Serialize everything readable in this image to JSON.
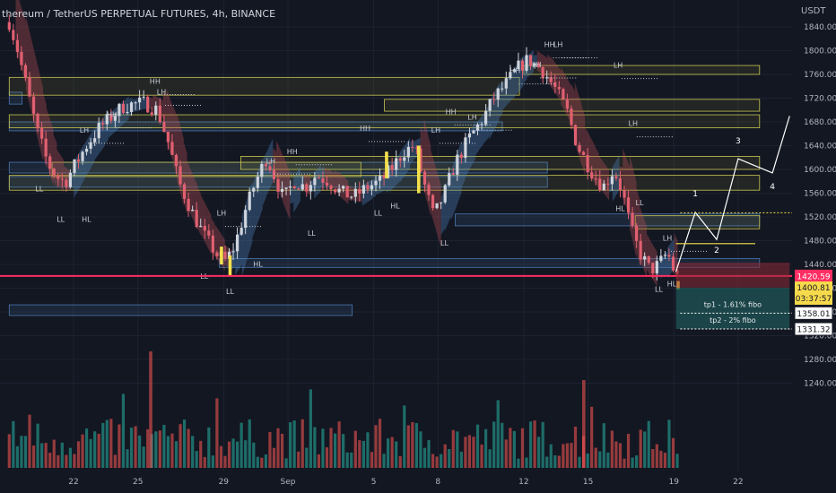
{
  "header": {
    "title": "thereum / TetherUS PERPETUAL FUTURES, 4h, BINANCE",
    "currency": "USDT"
  },
  "colors": {
    "background": "#131722",
    "up_candle": "#cfd4dc",
    "down_candle": "#e06070",
    "ribbon_up": "#4f86c4",
    "ribbon_down": "#c0505a",
    "supply_zone": "#c8c850",
    "demand_zone": "#4a78b0",
    "current_price_line": "#ff2e63",
    "current_price_label": "#f7d94c",
    "projection": "#ffffff",
    "volume_up": "#26a69a",
    "volume_down": "#ef5350"
  },
  "chart_data": {
    "type": "candlestick",
    "symbol": "ETHUSDT",
    "timeframe": "4h",
    "y_axis_ticks": [
      "1840.00",
      "1800.00",
      "1760.00",
      "1720.00",
      "1680.00",
      "1640.00",
      "1600.00",
      "1560.00",
      "1520.00",
      "1480.00",
      "1440.00",
      "1400.00",
      "1360.00",
      "1320.00",
      "1280.00",
      "1240.00"
    ],
    "x_axis_labels": [
      {
        "label": "22",
        "day": 22
      },
      {
        "label": "25",
        "day": 25
      },
      {
        "label": "29",
        "day": 29
      },
      {
        "label": "Sep",
        "day": 32
      },
      {
        "label": "5",
        "day": 36
      },
      {
        "label": "8",
        "day": 39
      },
      {
        "label": "12",
        "day": 43
      },
      {
        "label": "15",
        "day": 46
      },
      {
        "label": "19",
        "day": 50
      },
      {
        "label": "22",
        "day": 53
      }
    ],
    "ohlc_path": [
      {
        "day": 19.0,
        "price": 1848
      },
      {
        "day": 19.4,
        "price": 1800
      },
      {
        "day": 19.8,
        "price": 1740
      },
      {
        "day": 20.3,
        "price": 1665
      },
      {
        "day": 20.8,
        "price": 1610
      },
      {
        "day": 21.2,
        "price": 1588
      },
      {
        "day": 21.6,
        "price": 1578
      },
      {
        "day": 22.1,
        "price": 1610
      },
      {
        "day": 22.6,
        "price": 1640
      },
      {
        "day": 23.2,
        "price": 1670
      },
      {
        "day": 23.8,
        "price": 1690
      },
      {
        "day": 24.3,
        "price": 1706
      },
      {
        "day": 24.8,
        "price": 1710
      },
      {
        "day": 25.3,
        "price": 1712
      },
      {
        "day": 25.9,
        "price": 1700
      },
      {
        "day": 26.4,
        "price": 1648
      },
      {
        "day": 26.9,
        "price": 1580
      },
      {
        "day": 27.5,
        "price": 1530
      },
      {
        "day": 28.1,
        "price": 1488
      },
      {
        "day": 28.7,
        "price": 1456
      },
      {
        "day": 29.1,
        "price": 1446
      },
      {
        "day": 29.5,
        "price": 1470
      },
      {
        "day": 30.0,
        "price": 1530
      },
      {
        "day": 30.5,
        "price": 1580
      },
      {
        "day": 31.0,
        "price": 1620
      },
      {
        "day": 31.4,
        "price": 1586
      },
      {
        "day": 31.8,
        "price": 1550
      },
      {
        "day": 32.3,
        "price": 1580
      },
      {
        "day": 32.8,
        "price": 1570
      },
      {
        "day": 33.3,
        "price": 1590
      },
      {
        "day": 33.9,
        "price": 1580
      },
      {
        "day": 34.5,
        "price": 1560
      },
      {
        "day": 35.1,
        "price": 1555
      },
      {
        "day": 35.7,
        "price": 1570
      },
      {
        "day": 36.3,
        "price": 1580
      },
      {
        "day": 36.8,
        "price": 1600
      },
      {
        "day": 37.4,
        "price": 1630
      },
      {
        "day": 37.9,
        "price": 1640
      },
      {
        "day": 38.3,
        "price": 1582
      },
      {
        "day": 38.8,
        "price": 1520
      },
      {
        "day": 39.3,
        "price": 1560
      },
      {
        "day": 39.8,
        "price": 1610
      },
      {
        "day": 40.4,
        "price": 1650
      },
      {
        "day": 41.0,
        "price": 1680
      },
      {
        "day": 41.6,
        "price": 1720
      },
      {
        "day": 42.2,
        "price": 1745
      },
      {
        "day": 42.7,
        "price": 1770
      },
      {
        "day": 43.2,
        "price": 1785
      },
      {
        "day": 43.8,
        "price": 1770
      },
      {
        "day": 44.4,
        "price": 1740
      },
      {
        "day": 45.0,
        "price": 1700
      },
      {
        "day": 45.5,
        "price": 1640
      },
      {
        "day": 46.1,
        "price": 1600
      },
      {
        "day": 46.7,
        "price": 1570
      },
      {
        "day": 47.2,
        "price": 1600
      },
      {
        "day": 47.6,
        "price": 1562
      },
      {
        "day": 48.0,
        "price": 1500
      },
      {
        "day": 48.4,
        "price": 1460
      },
      {
        "day": 48.9,
        "price": 1430
      },
      {
        "day": 49.3,
        "price": 1440
      },
      {
        "day": 49.7,
        "price": 1460
      },
      {
        "day": 50.0,
        "price": 1430
      },
      {
        "day": 50.3,
        "price": 1410
      }
    ],
    "supply_zones": [
      {
        "d1": 19.0,
        "d2": 42.8,
        "p_top": 1755,
        "p_bot": 1725
      },
      {
        "d1": 36.5,
        "d2": 54.0,
        "p_top": 1718,
        "p_bot": 1698
      },
      {
        "d1": 19.0,
        "d2": 54.0,
        "p_top": 1692,
        "p_bot": 1670
      },
      {
        "d1": 43.0,
        "d2": 54.0,
        "p_top": 1775,
        "p_bot": 1760
      },
      {
        "d1": 21.0,
        "d2": 35.4,
        "p_top": 1612,
        "p_bot": 1588
      },
      {
        "d1": 29.8,
        "d2": 54.0,
        "p_top": 1622,
        "p_bot": 1600
      },
      {
        "d1": 19.0,
        "d2": 54.0,
        "p_top": 1590,
        "p_bot": 1565
      },
      {
        "d1": 48.2,
        "d2": 54.0,
        "p_top": 1522,
        "p_bot": 1500
      }
    ],
    "demand_zones": [
      {
        "d1": 19.0,
        "d2": 19.6,
        "p_top": 1730,
        "p_bot": 1710
      },
      {
        "d1": 19.0,
        "d2": 42.0,
        "p_top": 1680,
        "p_bot": 1665
      },
      {
        "d1": 19.0,
        "d2": 44.1,
        "p_top": 1588,
        "p_bot": 1570
      },
      {
        "d1": 19.0,
        "d2": 44.1,
        "p_top": 1612,
        "p_bot": 1594
      },
      {
        "d1": 39.8,
        "d2": 54.0,
        "p_top": 1525,
        "p_bot": 1505
      },
      {
        "d1": 19.0,
        "d2": 35.0,
        "p_top": 1372,
        "p_bot": 1354
      },
      {
        "d1": 28.8,
        "d2": 54.0,
        "p_top": 1450,
        "p_bot": 1435
      }
    ],
    "structure_labels": [
      {
        "text": "LL",
        "day": 20.4,
        "price": 1563
      },
      {
        "text": "LL",
        "day": 21.4,
        "price": 1512
      },
      {
        "text": "HL",
        "day": 22.6,
        "price": 1512
      },
      {
        "text": "LH",
        "day": 22.5,
        "price": 1662
      },
      {
        "text": "HH",
        "day": 23.8,
        "price": 1688
      },
      {
        "text": "HH",
        "day": 25.8,
        "price": 1744
      },
      {
        "text": "LH",
        "day": 26.1,
        "price": 1726
      },
      {
        "text": "LH",
        "day": 28.9,
        "price": 1522
      },
      {
        "text": "LL",
        "day": 28.1,
        "price": 1416
      },
      {
        "text": "LL",
        "day": 29.3,
        "price": 1390
      },
      {
        "text": "HL",
        "day": 30.6,
        "price": 1436
      },
      {
        "text": "LH",
        "day": 31.2,
        "price": 1610
      },
      {
        "text": "HH",
        "day": 32.2,
        "price": 1626
      },
      {
        "text": "LL",
        "day": 33.1,
        "price": 1488
      },
      {
        "text": "HH",
        "day": 35.6,
        "price": 1665
      },
      {
        "text": "LL",
        "day": 36.2,
        "price": 1522
      },
      {
        "text": "HL",
        "day": 37.0,
        "price": 1534
      },
      {
        "text": "LH",
        "day": 38.9,
        "price": 1662
      },
      {
        "text": "HH",
        "day": 39.6,
        "price": 1693
      },
      {
        "text": "LL",
        "day": 39.3,
        "price": 1472
      },
      {
        "text": "LH",
        "day": 40.6,
        "price": 1684
      },
      {
        "text": "HH",
        "day": 42.6,
        "price": 1762
      },
      {
        "text": "LH",
        "day": 43.6,
        "price": 1772
      },
      {
        "text": "HH",
        "day": 44.2,
        "price": 1806
      },
      {
        "text": "LH",
        "day": 44.6,
        "price": 1806
      },
      {
        "text": "LH",
        "day": 47.4,
        "price": 1771
      },
      {
        "text": "HL",
        "day": 47.5,
        "price": 1530
      },
      {
        "text": "LL",
        "day": 48.4,
        "price": 1540
      },
      {
        "text": "LH",
        "day": 48.1,
        "price": 1673
      },
      {
        "text": "LH",
        "day": 49.7,
        "price": 1480
      },
      {
        "text": "LL",
        "day": 49.3,
        "price": 1394
      },
      {
        "text": "HL",
        "day": 49.9,
        "price": 1403
      }
    ],
    "projection": {
      "points": [
        {
          "day": 50.1,
          "price": 1428
        },
        {
          "day": 51.0,
          "price": 1528
        },
        {
          "day": 52.0,
          "price": 1482
        },
        {
          "day": 53.0,
          "price": 1618
        },
        {
          "day": 54.6,
          "price": 1594
        },
        {
          "day": 55.4,
          "price": 1690
        }
      ],
      "wave_labels": [
        {
          "text": "1",
          "day": 51.0,
          "price": 1555
        },
        {
          "text": "2",
          "day": 52.0,
          "price": 1460
        },
        {
          "text": "3",
          "day": 53.0,
          "price": 1644
        },
        {
          "text": "4",
          "day": 54.6,
          "price": 1567
        }
      ],
      "resistance_dotted": 1527,
      "resistance_solid": 1475
    },
    "current_price": {
      "price": "1420.59",
      "value": 1420.59
    },
    "last_price": {
      "price": "1400.81",
      "value": 1400.81,
      "countdown": "03:37:57"
    },
    "targets": [
      {
        "label": "tp1 - 1.61% fibo",
        "price": "1358.01",
        "value": 1358.01
      },
      {
        "label": "tp2 - 2% fibo",
        "price": "1331.32",
        "value": 1331.32
      }
    ],
    "volume_range": [
      0,
      1
    ]
  }
}
